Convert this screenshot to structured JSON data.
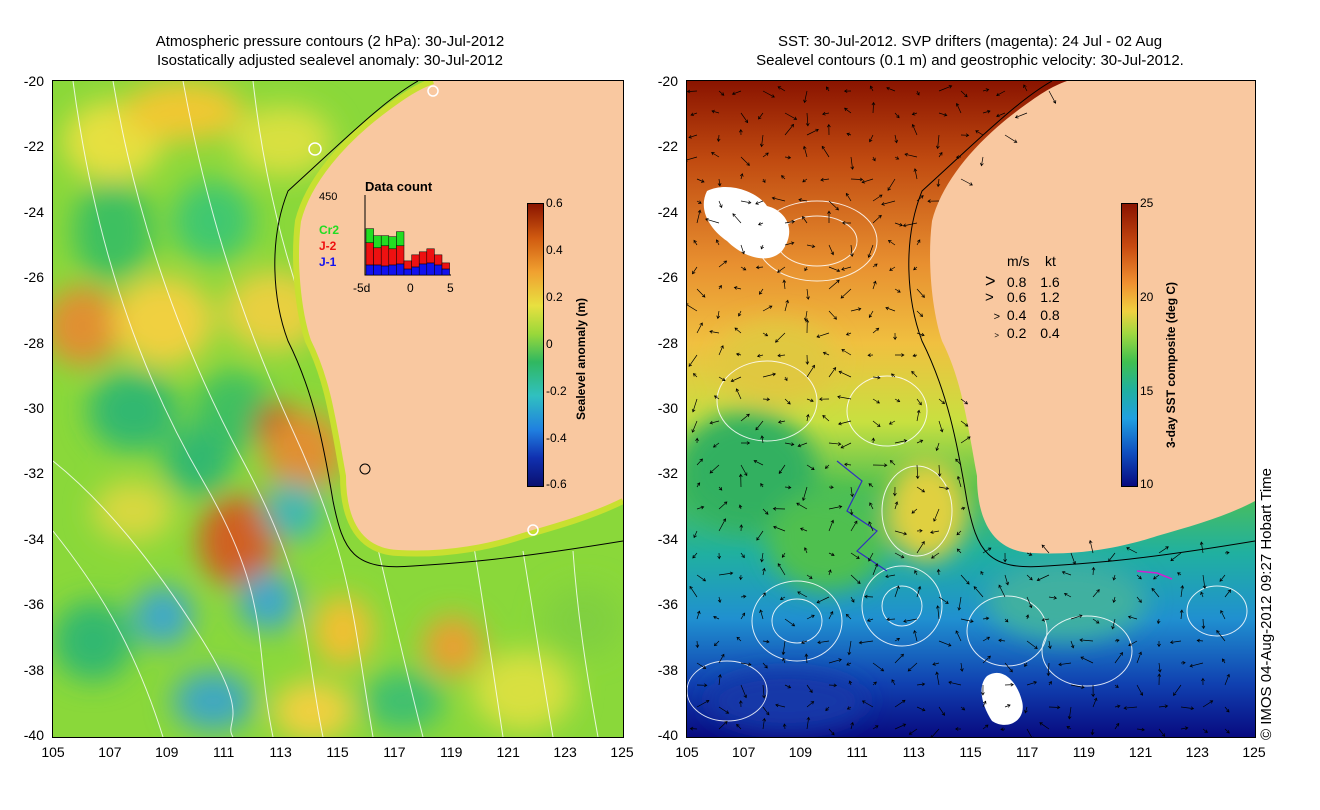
{
  "left_panel": {
    "title_line1": "Atmospheric pressure contours (2 hPa): 30-Jul-2012",
    "title_line2": "Isostatically adjusted sealevel anomaly: 30-Jul-2012",
    "colorbar_label": "Sealevel anomaly (m)",
    "colorbar_ticks": [
      "0.6",
      "0.4",
      "0.2",
      "0",
      "-0.2",
      "-0.4",
      "-0.6"
    ],
    "inset": {
      "title": "Data count",
      "ymax": "450",
      "series": [
        "Cr2",
        "J-2",
        "J-1"
      ],
      "series_colors": [
        "#22dd22",
        "#ee1111",
        "#1111ee"
      ],
      "xticks": [
        "-5d",
        "0",
        "5"
      ],
      "bars": [
        {
          "j1": 0.1,
          "j2": 0.22,
          "cr2": 0.14
        },
        {
          "j1": 0.1,
          "j2": 0.17,
          "cr2": 0.12
        },
        {
          "j1": 0.09,
          "j2": 0.2,
          "cr2": 0.1
        },
        {
          "j1": 0.1,
          "j2": 0.16,
          "cr2": 0.12
        },
        {
          "j1": 0.11,
          "j2": 0.18,
          "cr2": 0.14
        },
        {
          "j1": 0.06,
          "j2": 0.08,
          "cr2": 0.0
        },
        {
          "j1": 0.08,
          "j2": 0.12,
          "cr2": 0.0
        },
        {
          "j1": 0.11,
          "j2": 0.12,
          "cr2": 0.0
        },
        {
          "j1": 0.12,
          "j2": 0.14,
          "cr2": 0.0
        },
        {
          "j1": 0.1,
          "j2": 0.1,
          "cr2": 0.0
        },
        {
          "j1": 0.06,
          "j2": 0.06,
          "cr2": 0.0
        }
      ]
    }
  },
  "right_panel": {
    "title_line1": "SST: 30-Jul-2012. SVP drifters (magenta): 24 Jul - 02 Aug",
    "title_line2": "Sealevel contours (0.1 m) and geostrophic velocity: 30-Jul-2012.",
    "colorbar_label": "3-day SST composite (deg C)",
    "colorbar_ticks": [
      "25",
      "20",
      "15",
      "10"
    ],
    "legend_header_ms": "m/s",
    "legend_header_kt": "kt",
    "legend_rows": [
      {
        "ms": "0.8",
        "kt": "1.6",
        "size": 0.8
      },
      {
        "ms": "0.6",
        "kt": "1.2",
        "size": 0.6
      },
      {
        "ms": "0.4",
        "kt": "0.8",
        "size": 0.4
      },
      {
        "ms": "0.2",
        "kt": "0.4",
        "size": 0.2
      }
    ]
  },
  "axes": {
    "y_ticks": [
      "-20",
      "-22",
      "-24",
      "-26",
      "-28",
      "-30",
      "-32",
      "-34",
      "-36",
      "-38",
      "-40"
    ],
    "x_ticks": [
      "105",
      "107",
      "109",
      "111",
      "113",
      "115",
      "117",
      "119",
      "121",
      "123",
      "125"
    ]
  },
  "credit": "© IMOS 04-Aug-2012 09:27 Hobart Time",
  "colors": {
    "land": "#f9c8a0",
    "anomaly_high": "#a01c00",
    "anomaly_low": "#0a1070",
    "sst_high": "#8a1200",
    "sst_low": "#080a80"
  }
}
